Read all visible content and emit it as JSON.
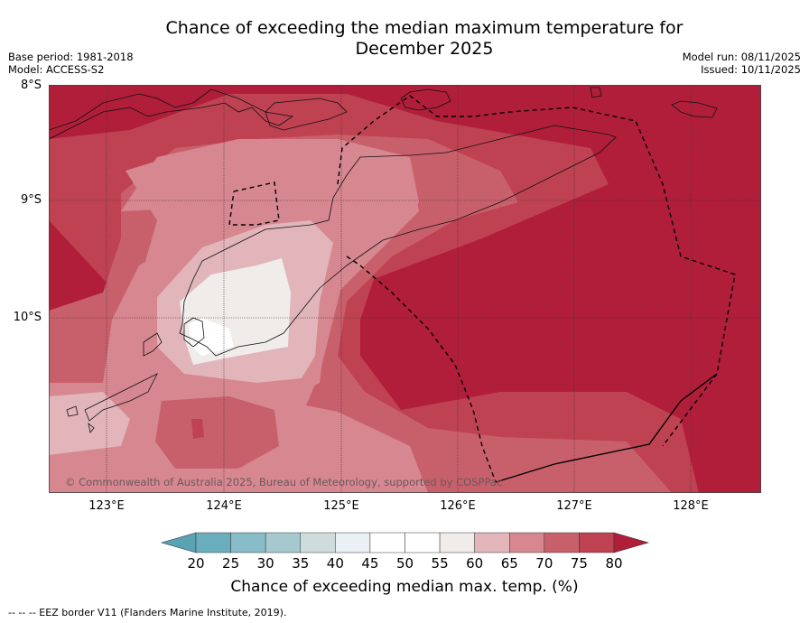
{
  "header": {
    "title_line1": "Chance of exceeding the median maximum temperature for",
    "title_line2": "December 2025",
    "base_period": "Base period: 1981-2018",
    "model": "Model: ACCESS-S2",
    "model_run": "Model run: 08/11/2025",
    "issued": "Issued: 10/11/2025"
  },
  "map": {
    "lat_labels": [
      "8°S",
      "9°S",
      "10°S"
    ],
    "lon_labels": [
      "123°E",
      "124°E",
      "125°E",
      "126°E",
      "127°E",
      "128°E"
    ],
    "credit": "© Commonwealth of Australia 2025, Bureau of Meteorology, supported by COSPPac",
    "color_high": "#b01e3a",
    "color_mid": "#d98a94",
    "color_white": "#f7f7f7"
  },
  "colorbar": {
    "ticks": [
      "20",
      "25",
      "30",
      "35",
      "40",
      "45",
      "50",
      "55",
      "60",
      "65",
      "70",
      "75",
      "80"
    ],
    "colors": [
      "#5aa3b3",
      "#6aaebd",
      "#88bcc8",
      "#a6c9cf",
      "#cfdcdc",
      "#eaf0f3",
      "#ffffff",
      "#ffffff",
      "#efecea",
      "#e1b5ba",
      "#d68790",
      "#c8606c",
      "#bf4252",
      "#b01e3a"
    ],
    "label": "Chance of exceeding median max. temp. (%)"
  },
  "footnote": "--  --  -- EEZ border V11 (Flanders Marine Institute, 2019)."
}
